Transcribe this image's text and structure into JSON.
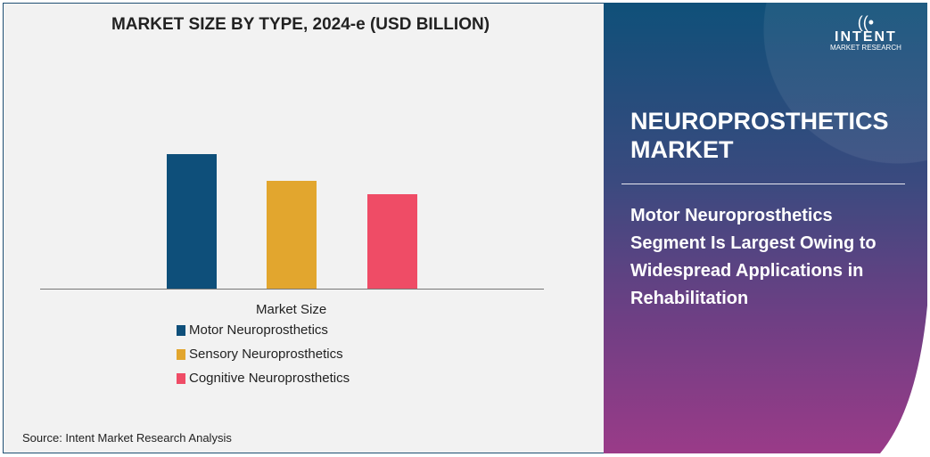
{
  "chart_data": {
    "type": "bar",
    "title": "MARKET SIZE BY TYPE, 2024-e (USD BILLION)",
    "xlabel": "Market Size",
    "categories": [
      "Motor Neuroprosthetics",
      "Sensory Neuroprosthetics",
      "Cognitive Neuroprosthetics"
    ],
    "values": [
      1.51,
      1.21,
      1.06
    ],
    "colors": [
      "#0e4f7a",
      "#e2a62e",
      "#ef4c66"
    ],
    "ylim": [
      0,
      1.6
    ],
    "grid": false,
    "legend_placement": "bottom"
  },
  "source": "Source: Intent Market Research Analysis",
  "panel": {
    "title": "NEUROPROSTHETICS MARKET",
    "subtitle": "Motor Neuroprosthetics Segment Is Largest Owing to Widespread Applications in Rehabilitation"
  },
  "logo": {
    "brand": "INTENT",
    "sub": "MARKET RESEARCH"
  }
}
